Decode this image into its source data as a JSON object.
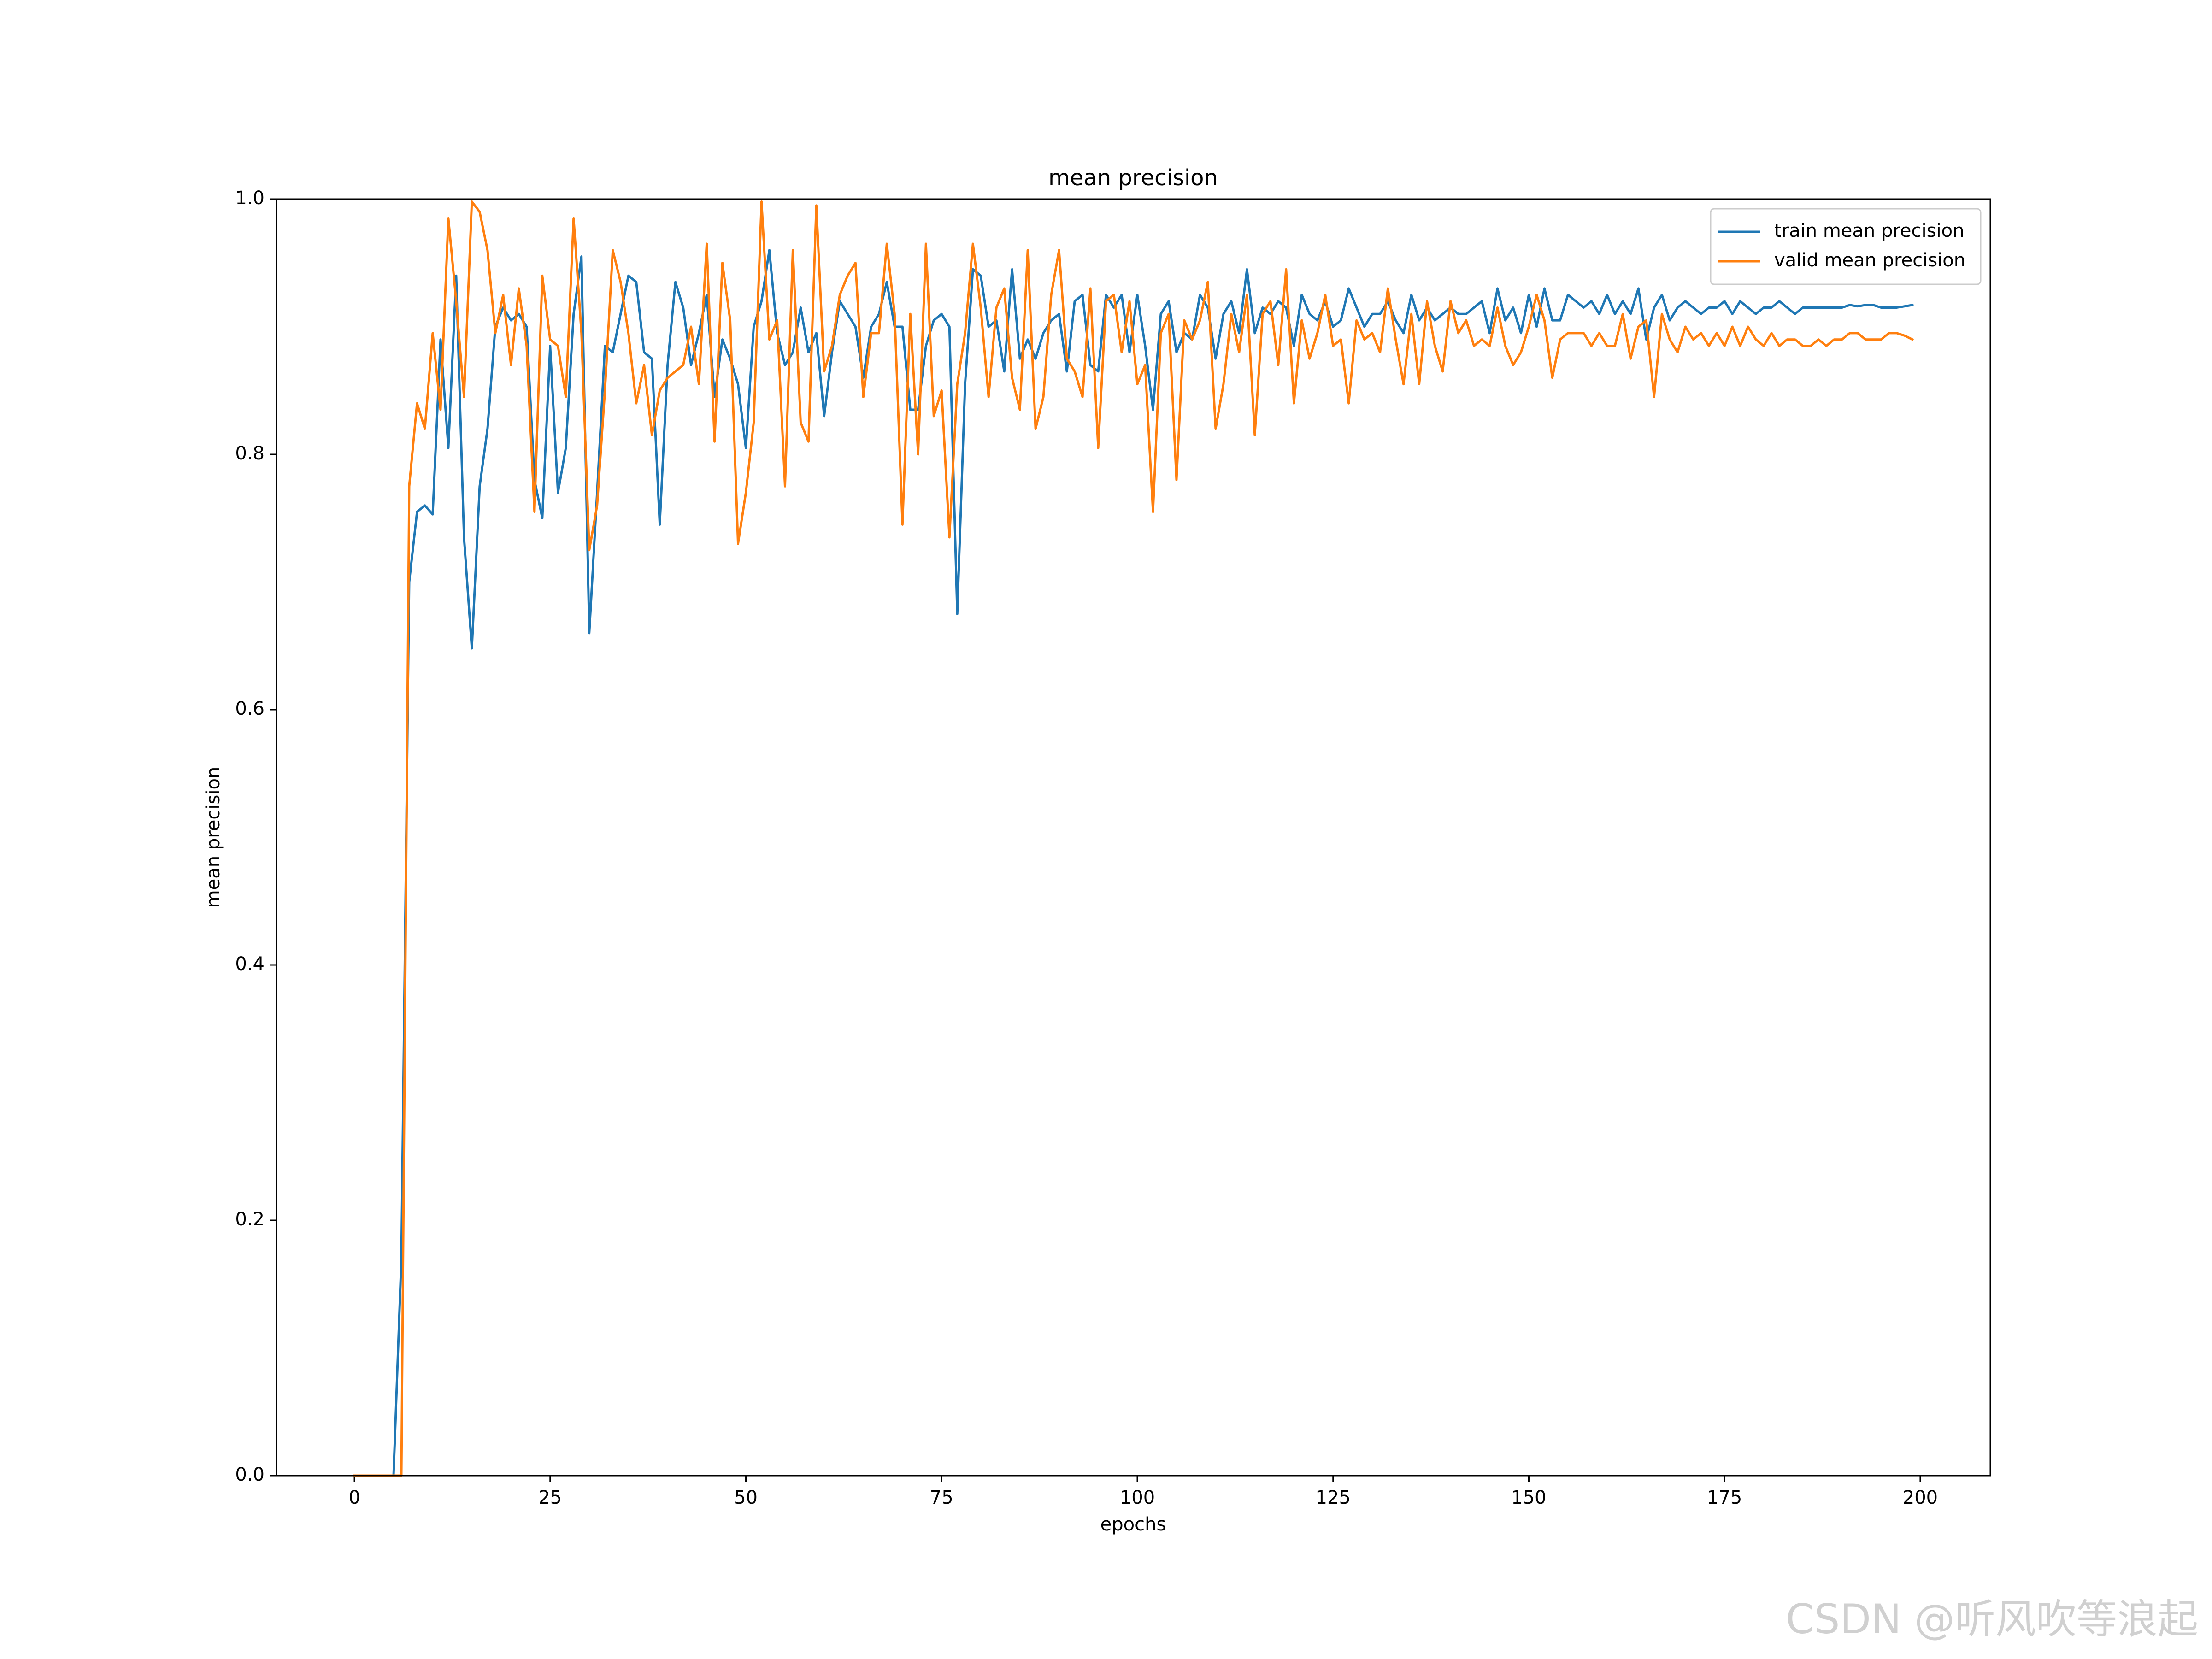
{
  "chart_data": {
    "type": "line",
    "title": "mean precision",
    "xlabel": "epochs",
    "ylabel": "mean precision",
    "x": [
      0,
      1,
      2,
      3,
      4,
      5,
      6,
      7,
      8,
      9,
      10,
      11,
      12,
      13,
      14,
      15,
      16,
      17,
      18,
      19,
      20,
      21,
      22,
      23,
      24,
      25,
      26,
      27,
      28,
      29,
      30,
      31,
      32,
      33,
      34,
      35,
      36,
      37,
      38,
      39,
      40,
      41,
      42,
      43,
      44,
      45,
      46,
      47,
      48,
      49,
      50,
      51,
      52,
      53,
      54,
      55,
      56,
      57,
      58,
      59,
      60,
      61,
      62,
      63,
      64,
      65,
      66,
      67,
      68,
      69,
      70,
      71,
      72,
      73,
      74,
      75,
      76,
      77,
      78,
      79,
      80,
      81,
      82,
      83,
      84,
      85,
      86,
      87,
      88,
      89,
      90,
      91,
      92,
      93,
      94,
      95,
      96,
      97,
      98,
      99,
      100,
      101,
      102,
      103,
      104,
      105,
      106,
      107,
      108,
      109,
      110,
      111,
      112,
      113,
      114,
      115,
      116,
      117,
      118,
      119,
      120,
      121,
      122,
      123,
      124,
      125,
      126,
      127,
      128,
      129,
      130,
      131,
      132,
      133,
      134,
      135,
      136,
      137,
      138,
      139,
      140,
      141,
      142,
      143,
      144,
      145,
      146,
      147,
      148,
      149,
      150,
      151,
      152,
      153,
      154,
      155,
      156,
      157,
      158,
      159,
      160,
      161,
      162,
      163,
      164,
      165,
      166,
      167,
      168,
      169,
      170,
      171,
      172,
      173,
      174,
      175,
      176,
      177,
      178,
      179,
      180,
      181,
      182,
      183,
      184,
      185,
      186,
      187,
      188,
      189,
      190,
      191,
      192,
      193,
      194,
      195,
      196,
      197,
      198,
      199
    ],
    "series": [
      {
        "name": "train mean precision",
        "color": "#1f77b4",
        "values": [
          0,
          0,
          0,
          0,
          0,
          0,
          0.17,
          0.7,
          0.755,
          0.76,
          0.753,
          0.89,
          0.805,
          0.94,
          0.735,
          0.648,
          0.775,
          0.82,
          0.9,
          0.915,
          0.905,
          0.91,
          0.9,
          0.78,
          0.75,
          0.885,
          0.77,
          0.805,
          0.91,
          0.955,
          0.66,
          0.77,
          0.885,
          0.88,
          0.91,
          0.94,
          0.935,
          0.88,
          0.875,
          0.745,
          0.87,
          0.935,
          0.915,
          0.87,
          0.895,
          0.925,
          0.845,
          0.89,
          0.875,
          0.855,
          0.805,
          0.9,
          0.92,
          0.96,
          0.895,
          0.87,
          0.88,
          0.915,
          0.88,
          0.895,
          0.83,
          0.88,
          0.92,
          0.91,
          0.9,
          0.86,
          0.9,
          0.91,
          0.935,
          0.9,
          0.9,
          0.835,
          0.835,
          0.885,
          0.905,
          0.91,
          0.9,
          0.675,
          0.855,
          0.945,
          0.94,
          0.9,
          0.905,
          0.865,
          0.945,
          0.875,
          0.89,
          0.875,
          0.895,
          0.905,
          0.91,
          0.865,
          0.92,
          0.925,
          0.87,
          0.865,
          0.925,
          0.915,
          0.925,
          0.88,
          0.925,
          0.885,
          0.835,
          0.91,
          0.92,
          0.88,
          0.895,
          0.89,
          0.925,
          0.915,
          0.875,
          0.91,
          0.92,
          0.895,
          0.945,
          0.895,
          0.915,
          0.91,
          0.92,
          0.915,
          0.885,
          0.925,
          0.91,
          0.905,
          0.92,
          0.9,
          0.905,
          0.93,
          0.915,
          0.9,
          0.91,
          0.91,
          0.92,
          0.905,
          0.895,
          0.925,
          0.905,
          0.915,
          0.905,
          0.91,
          0.915,
          0.91,
          0.91,
          0.915,
          0.92,
          0.895,
          0.93,
          0.905,
          0.915,
          0.895,
          0.925,
          0.9,
          0.93,
          0.905,
          0.905,
          0.925,
          0.92,
          0.915,
          0.92,
          0.91,
          0.925,
          0.91,
          0.92,
          0.91,
          0.93,
          0.89,
          0.915,
          0.925,
          0.905,
          0.915,
          0.92,
          0.915,
          0.91,
          0.915,
          0.915,
          0.92,
          0.91,
          0.92,
          0.915,
          0.91,
          0.915,
          0.915,
          0.92,
          0.915,
          0.91,
          0.915,
          0.915,
          0.915,
          0.915,
          0.915,
          0.915,
          0.917,
          0.916,
          0.917,
          0.917,
          0.915,
          0.915,
          0.915,
          0.916,
          0.917
        ]
      },
      {
        "name": "valid mean precision",
        "color": "#ff7f0e",
        "values": [
          0,
          0,
          0,
          0,
          0,
          0,
          0,
          0.775,
          0.84,
          0.82,
          0.895,
          0.835,
          0.985,
          0.92,
          0.845,
          0.998,
          0.99,
          0.96,
          0.895,
          0.925,
          0.87,
          0.93,
          0.885,
          0.755,
          0.94,
          0.89,
          0.885,
          0.845,
          0.985,
          0.895,
          0.725,
          0.76,
          0.85,
          0.96,
          0.935,
          0.895,
          0.84,
          0.87,
          0.815,
          0.85,
          0.86,
          0.865,
          0.87,
          0.9,
          0.855,
          0.965,
          0.81,
          0.95,
          0.905,
          0.73,
          0.77,
          0.825,
          0.998,
          0.89,
          0.905,
          0.775,
          0.96,
          0.825,
          0.81,
          0.995,
          0.865,
          0.885,
          0.925,
          0.94,
          0.95,
          0.845,
          0.895,
          0.895,
          0.965,
          0.91,
          0.745,
          0.91,
          0.8,
          0.965,
          0.83,
          0.85,
          0.735,
          0.855,
          0.895,
          0.965,
          0.915,
          0.845,
          0.915,
          0.93,
          0.86,
          0.835,
          0.96,
          0.82,
          0.845,
          0.925,
          0.96,
          0.875,
          0.865,
          0.845,
          0.93,
          0.805,
          0.92,
          0.925,
          0.88,
          0.92,
          0.855,
          0.87,
          0.755,
          0.895,
          0.91,
          0.78,
          0.905,
          0.89,
          0.905,
          0.935,
          0.82,
          0.855,
          0.91,
          0.88,
          0.925,
          0.815,
          0.91,
          0.92,
          0.87,
          0.945,
          0.84,
          0.905,
          0.875,
          0.895,
          0.925,
          0.885,
          0.89,
          0.84,
          0.905,
          0.89,
          0.895,
          0.88,
          0.93,
          0.89,
          0.855,
          0.91,
          0.855,
          0.92,
          0.885,
          0.865,
          0.92,
          0.895,
          0.905,
          0.885,
          0.89,
          0.885,
          0.915,
          0.885,
          0.87,
          0.88,
          0.9,
          0.925,
          0.905,
          0.86,
          0.89,
          0.895,
          0.895,
          0.895,
          0.885,
          0.895,
          0.885,
          0.885,
          0.91,
          0.875,
          0.9,
          0.905,
          0.845,
          0.91,
          0.89,
          0.88,
          0.9,
          0.89,
          0.895,
          0.885,
          0.895,
          0.885,
          0.9,
          0.885,
          0.9,
          0.89,
          0.885,
          0.895,
          0.885,
          0.89,
          0.89,
          0.885,
          0.885,
          0.89,
          0.885,
          0.89,
          0.89,
          0.895,
          0.895,
          0.89,
          0.89,
          0.89,
          0.895,
          0.895,
          0.893,
          0.89
        ]
      }
    ],
    "xlim": [
      -9.95,
      208.95
    ],
    "ylim": [
      0,
      1
    ],
    "xticks": [
      0,
      25,
      50,
      75,
      100,
      125,
      150,
      175,
      200
    ],
    "yticks": [
      {
        "value": 0,
        "label": "0.0"
      },
      {
        "value": 0.2,
        "label": "0.2"
      },
      {
        "value": 0.4,
        "label": "0.4"
      },
      {
        "value": 0.6,
        "label": "0.6"
      },
      {
        "value": 0.8,
        "label": "0.8"
      },
      {
        "value": 1,
        "label": "1.0"
      }
    ],
    "legend": "upper right"
  },
  "watermark": "CSDN @听风吹等浪起"
}
